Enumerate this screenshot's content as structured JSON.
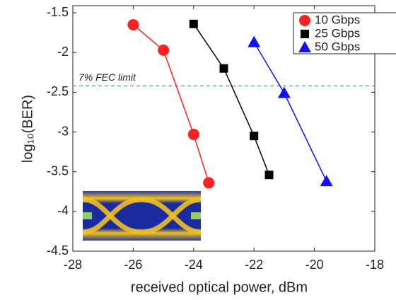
{
  "chart_data": {
    "type": "line",
    "x_label": "received optical power, dBm",
    "y_label": "log₁₀(BER)",
    "xlim": [
      -28,
      -18
    ],
    "xticks": [
      -28,
      -26,
      -24,
      -22,
      -20,
      -18
    ],
    "ylim": [
      -4.5,
      -1.41
    ],
    "yticks": [
      -4.5,
      -4,
      -3.5,
      -3,
      -2.5,
      -2,
      -1.5
    ],
    "series": [
      {
        "name": "10 Gbps",
        "color": "#ff2020",
        "marker": "circle",
        "x": [
          -26,
          -25,
          -24,
          -23.5
        ],
        "values": [
          -1.65,
          -1.97,
          -3.03,
          -3.64
        ]
      },
      {
        "name": "25 Gbps",
        "color": "#000000",
        "marker": "square",
        "x": [
          -24,
          -23,
          -22,
          -21.5
        ],
        "values": [
          -1.64,
          -2.2,
          -3.05,
          -3.54
        ]
      },
      {
        "name": "50 Gbps",
        "color": "#1010ff",
        "marker": "triangle",
        "x": [
          -22,
          -21,
          -19.6
        ],
        "values": [
          -1.87,
          -2.51,
          -3.62
        ]
      }
    ],
    "reference_line": {
      "label": "7% FEC limit",
      "value": -2.42,
      "color": "#40b8d8"
    },
    "legend": "upper right"
  }
}
